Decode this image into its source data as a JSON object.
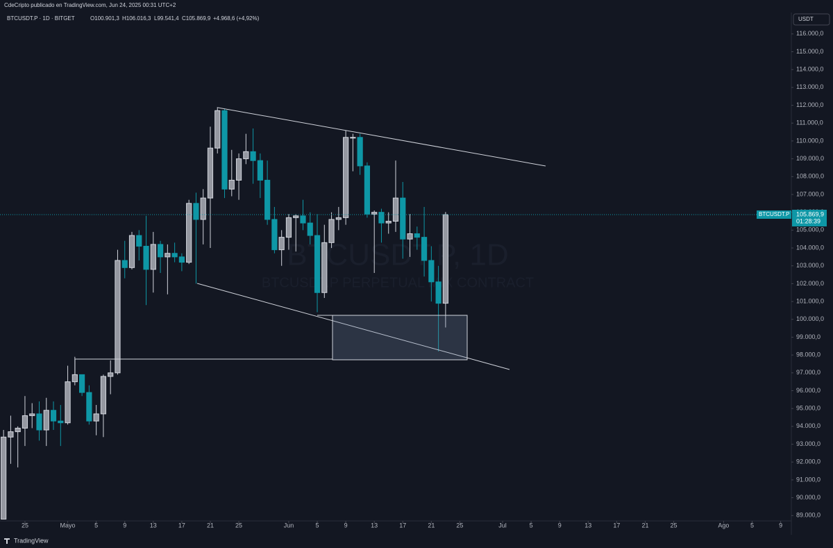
{
  "header": {
    "published": "CdeCripto publicado en TradingView.com, Jun 24, 2025 00:31 UTC+2",
    "symbol": "BTCUSDT.P · 1D · BITGET",
    "ohlc": [
      "O100.901,3",
      "H106.016,3",
      "L99.541,4",
      "C105.869,9",
      "+4.968,6 (+4,92%)"
    ],
    "currency": "USDT"
  },
  "watermark": {
    "title": "BTCUSDT.P, 1D",
    "subtitle": "BTCUSDT.P PERPETUAL MIX CONTRACT"
  },
  "price_tag": {
    "symbol": "BTCUSDT.P",
    "price": "105.869,9",
    "countdown": "01:28:39"
  },
  "footer": {
    "brand": "TradingView"
  },
  "chart_data": {
    "type": "candlestick",
    "up_color": "#d1d4dc",
    "down_color": "#0e97a6",
    "grid": false,
    "x": [
      112,
      113,
      114,
      115,
      116,
      117,
      118,
      119,
      120,
      121,
      122,
      123,
      124,
      125,
      126,
      127,
      128,
      129,
      130,
      131,
      132,
      133,
      134,
      135,
      136,
      137,
      138,
      139,
      140,
      141,
      142,
      143,
      144,
      145,
      146,
      147,
      148,
      149,
      150,
      151,
      152,
      153,
      154,
      155,
      156,
      157,
      158,
      159,
      160,
      161,
      162,
      163,
      164,
      165,
      166,
      167,
      168,
      169,
      170,
      171,
      172,
      173,
      174
    ],
    "open": [
      88800,
      93400,
      93700,
      93900,
      94600,
      94700,
      93800,
      94900,
      94300,
      94200,
      96500,
      96900,
      95900,
      94300,
      94700,
      96800,
      97000,
      103300,
      102900,
      104700,
      104100,
      102800,
      104200,
      103500,
      103700,
      103500,
      103200,
      106500,
      105600,
      106800,
      109600,
      111700,
      107300,
      107800,
      109000,
      109400,
      108900,
      107800,
      105600,
      103900,
      104600,
      105700,
      105800,
      105400,
      104700,
      101500,
      104300,
      105600,
      105700,
      110200,
      110200,
      108600,
      105900,
      106000,
      105400,
      105500,
      106800,
      104500,
      104800,
      104600,
      103300,
      102100,
      100901.3
    ],
    "high": [
      93800,
      94600,
      94000,
      95700,
      95300,
      95400,
      95600,
      95400,
      95200,
      97400,
      97900,
      96900,
      96300,
      95200,
      96900,
      97700,
      103900,
      104400,
      104900,
      105000,
      105800,
      104900,
      104400,
      104200,
      104300,
      103700,
      106700,
      107100,
      107300,
      110800,
      111900,
      111800,
      109500,
      109300,
      110400,
      110700,
      109300,
      108900,
      106300,
      105000,
      105900,
      105900,
      106700,
      106000,
      105900,
      105300,
      106000,
      106300,
      110600,
      110400,
      110400,
      108800,
      106100,
      106200,
      106000,
      108900,
      107700,
      105900,
      105200,
      106300,
      104100,
      103000,
      106016.3
    ],
    "low": [
      88900,
      91900,
      91700,
      92900,
      93900,
      93200,
      92900,
      93800,
      92900,
      94100,
      96300,
      95700,
      94100,
      93500,
      93400,
      95800,
      96900,
      102300,
      102800,
      103300,
      100800,
      101500,
      102600,
      101400,
      103200,
      102700,
      103100,
      102000,
      104200,
      104000,
      109300,
      106800,
      106900,
      106700,
      108700,
      107600,
      106800,
      105300,
      103700,
      103000,
      103900,
      103800,
      105000,
      104200,
      100400,
      101200,
      104000,
      105000,
      105300,
      108300,
      108100,
      105700,
      102600,
      104300,
      104800,
      104900,
      103400,
      103500,
      103900,
      102400,
      101000,
      98200,
      99541.4
    ],
    "close": [
      93400,
      93700,
      93900,
      94600,
      94700,
      93800,
      94900,
      94300,
      94200,
      96500,
      96900,
      95900,
      94300,
      94700,
      96800,
      97000,
      103300,
      102900,
      104700,
      104100,
      102800,
      104200,
      103500,
      103700,
      103500,
      103200,
      106500,
      105600,
      106800,
      109600,
      111700,
      107300,
      107800,
      109000,
      109400,
      108900,
      107800,
      105600,
      103900,
      104600,
      105700,
      105800,
      105400,
      104700,
      101500,
      104300,
      105600,
      105700,
      110200,
      110200,
      108600,
      105900,
      106000,
      105400,
      105500,
      106800,
      104500,
      104800,
      104600,
      103300,
      102100,
      100900,
      105869.9
    ],
    "xlim": [
      111.5,
      222.5
    ],
    "ylim": [
      88700,
      117200
    ],
    "xticks": [
      {
        "value": 115,
        "label": "25"
      },
      {
        "value": 121,
        "label": "Mayo"
      },
      {
        "value": 125,
        "label": "5"
      },
      {
        "value": 129,
        "label": "9"
      },
      {
        "value": 133,
        "label": "13"
      },
      {
        "value": 137,
        "label": "17"
      },
      {
        "value": 141,
        "label": "21"
      },
      {
        "value": 145,
        "label": "25"
      },
      {
        "value": 152,
        "label": "Jun"
      },
      {
        "value": 156,
        "label": "5"
      },
      {
        "value": 160,
        "label": "9"
      },
      {
        "value": 164,
        "label": "13"
      },
      {
        "value": 168,
        "label": "17"
      },
      {
        "value": 172,
        "label": "21"
      },
      {
        "value": 176,
        "label": "25"
      },
      {
        "value": 182,
        "label": "Jul"
      },
      {
        "value": 186,
        "label": "5"
      },
      {
        "value": 190,
        "label": "9"
      },
      {
        "value": 194,
        "label": "13"
      },
      {
        "value": 198,
        "label": "17"
      },
      {
        "value": 202,
        "label": "21"
      },
      {
        "value": 206,
        "label": "25"
      },
      {
        "value": 213,
        "label": "Ago"
      },
      {
        "value": 217,
        "label": "5"
      },
      {
        "value": 221,
        "label": "9"
      }
    ],
    "yticks": [
      {
        "value": 89000,
        "label": "89.000,0"
      },
      {
        "value": 90000,
        "label": "90.000,0"
      },
      {
        "value": 91000,
        "label": "91.000,0"
      },
      {
        "value": 92000,
        "label": "92.000,0"
      },
      {
        "value": 93000,
        "label": "93.000,0"
      },
      {
        "value": 94000,
        "label": "94.000,0"
      },
      {
        "value": 95000,
        "label": "95.000,0"
      },
      {
        "value": 96000,
        "label": "96.000,0"
      },
      {
        "value": 97000,
        "label": "97.000,0"
      },
      {
        "value": 98000,
        "label": "98.000,0"
      },
      {
        "value": 99000,
        "label": "99.000,0"
      },
      {
        "value": 100000,
        "label": "100.000,0"
      },
      {
        "value": 101000,
        "label": "101.000,0"
      },
      {
        "value": 102000,
        "label": "102.000,0"
      },
      {
        "value": 103000,
        "label": "103.000,0"
      },
      {
        "value": 104000,
        "label": "104.000,0"
      },
      {
        "value": 105000,
        "label": "105.000,0"
      },
      {
        "value": 106000,
        "label": "106.000,0"
      },
      {
        "value": 107000,
        "label": "107.000,0"
      },
      {
        "value": 108000,
        "label": "108.000,0"
      },
      {
        "value": 109000,
        "label": "109.000,0"
      },
      {
        "value": 110000,
        "label": "110.000,0"
      },
      {
        "value": 111000,
        "label": "111.000,0"
      },
      {
        "value": 112000,
        "label": "112.000,0"
      },
      {
        "value": 113000,
        "label": "113.000,0"
      },
      {
        "value": 114000,
        "label": "114.000,0"
      },
      {
        "value": 115000,
        "label": "115.000,0"
      },
      {
        "value": 116000,
        "label": "116.000,0"
      }
    ]
  }
}
